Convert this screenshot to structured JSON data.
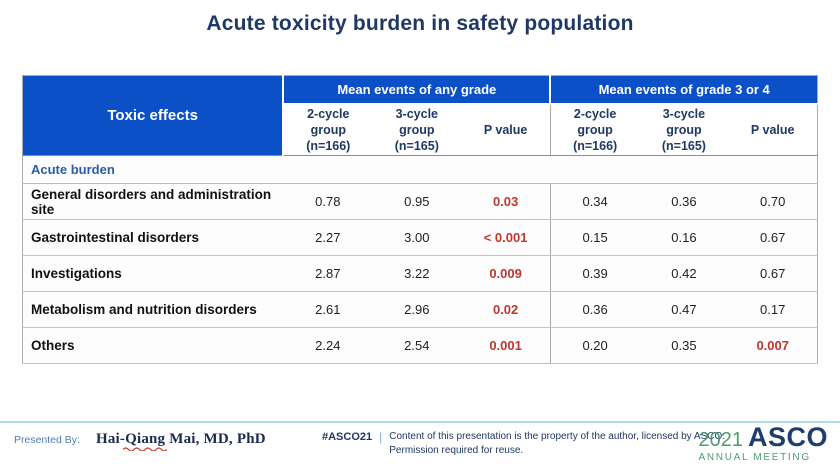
{
  "slide": {
    "title": "Acute toxicity burden in safety population"
  },
  "table": {
    "corner_header": "Toxic effects",
    "group_headers": [
      "Mean events of any grade",
      "Mean events of grade 3 or 4"
    ],
    "sub_headers": [
      "2-cycle\ngroup\n(n=166)",
      "3-cycle\ngroup\n(n=165)",
      "P value",
      "2-cycle\ngroup\n(n=166)",
      "3-cycle\ngroup\n(n=165)",
      "P value"
    ],
    "section_label": "Acute burden",
    "rows": [
      {
        "label": "General disorders and administration site",
        "cells": [
          {
            "v": "0.78"
          },
          {
            "v": "0.95"
          },
          {
            "v": "0.03",
            "sig": true
          },
          {
            "v": "0.34"
          },
          {
            "v": "0.36"
          },
          {
            "v": "0.70"
          }
        ]
      },
      {
        "label": "Gastrointestinal disorders",
        "cells": [
          {
            "v": "2.27"
          },
          {
            "v": "3.00"
          },
          {
            "v": "< 0.001",
            "sig": true
          },
          {
            "v": "0.15"
          },
          {
            "v": "0.16"
          },
          {
            "v": "0.67"
          }
        ]
      },
      {
        "label": "Investigations",
        "cells": [
          {
            "v": "2.87"
          },
          {
            "v": "3.22"
          },
          {
            "v": "0.009",
            "sig": true
          },
          {
            "v": "0.39"
          },
          {
            "v": "0.42"
          },
          {
            "v": "0.67"
          }
        ]
      },
      {
        "label": "Metabolism and nutrition disorders",
        "cells": [
          {
            "v": "2.61"
          },
          {
            "v": "2.96"
          },
          {
            "v": "0.02",
            "sig": true
          },
          {
            "v": "0.36"
          },
          {
            "v": "0.47"
          },
          {
            "v": "0.17"
          }
        ]
      },
      {
        "label": "Others",
        "cells": [
          {
            "v": "2.24"
          },
          {
            "v": "2.54"
          },
          {
            "v": "0.001",
            "sig": true
          },
          {
            "v": "0.20"
          },
          {
            "v": "0.35"
          },
          {
            "v": "0.007",
            "sig": true
          }
        ]
      }
    ]
  },
  "footer": {
    "presented_by_label": "Presented By:",
    "presenter": "Hai-Qiang Mai, MD, PhD",
    "hashtag": "#ASCO21",
    "separator": "|",
    "license_line1": "Content of this presentation is the property of the author, licensed by ASCO.",
    "license_line2": "Permission required for reuse.",
    "logo": {
      "year": "2021",
      "org": "ASCO",
      "meeting": "ANNUAL MEETING"
    }
  },
  "colors": {
    "header_blue": "#0b50c6",
    "title_navy": "#1f3864",
    "section_blue": "#2a5ca8",
    "significant_red": "#bd382d",
    "presented_blue": "#4d7ebf",
    "footer_rule": "#aedce8",
    "logo_green": "#4d9b71",
    "logo_navy": "#1e3c6e"
  }
}
